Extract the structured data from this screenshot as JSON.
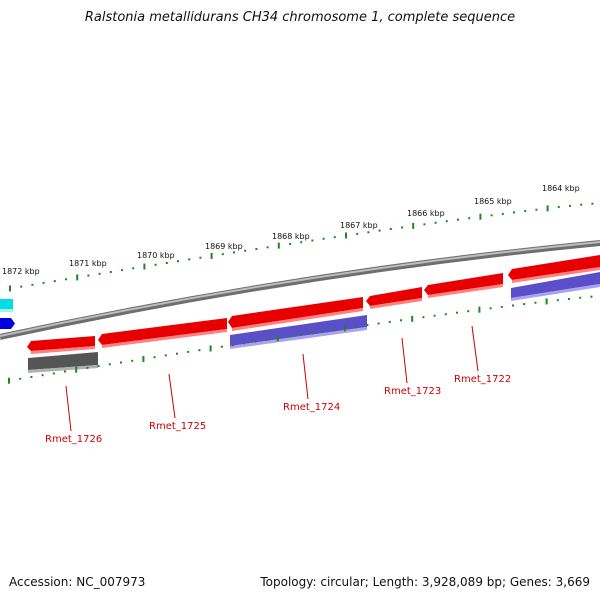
{
  "title": "Ralstonia metallidurans CH34 chromosome 1, complete sequence",
  "footer": {
    "accession": "Accession: NC_007973",
    "summary": "Topology: circular; Length: 3,928,089 bp; Genes: 3,669"
  },
  "colors": {
    "backbone": "#808080",
    "gene_forward": "#e00000",
    "gene_reverse": "#6a5acd",
    "gene_other": "#555555",
    "ticks": "#1a8a1a",
    "gene_label": "#cc0000",
    "left_cyan": "#00d8e0",
    "left_blue": "#0000e0"
  },
  "ruler": {
    "unit": "kbp",
    "labels": [
      "1872 kbp",
      "1871 kbp",
      "1870 kbp",
      "1869 kbp",
      "1868 kbp",
      "1867 kbp",
      "1866 kbp",
      "1865 kbp",
      "1864 kbp"
    ]
  },
  "gene_labels": [
    "Rmet_1726",
    "Rmet_1725",
    "Rmet_1724",
    "Rmet_1723",
    "Rmet_1722"
  ]
}
